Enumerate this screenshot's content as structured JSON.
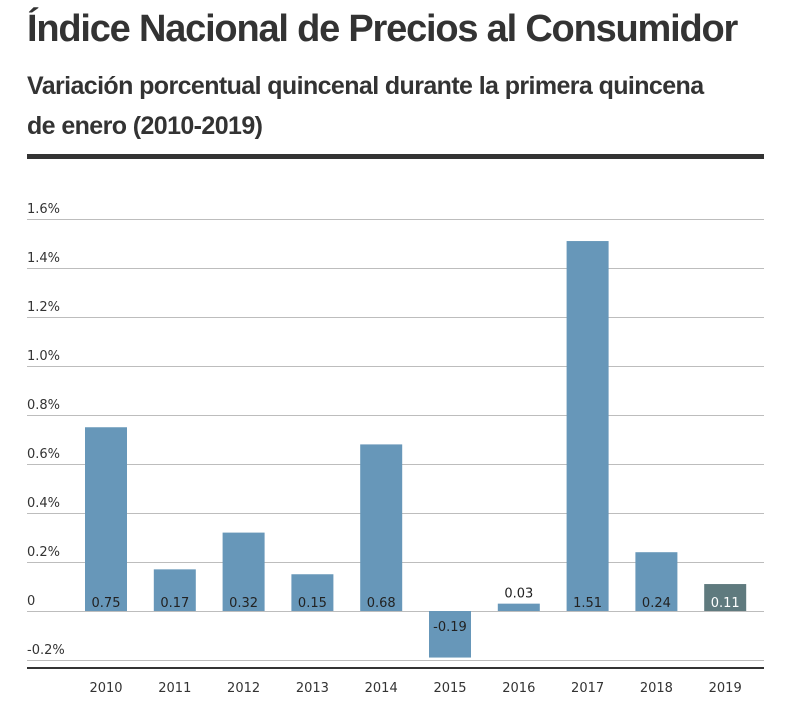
{
  "title": "Índice Nacional de Precios al Consumidor",
  "subtitle": "Variación porcentual quincenal durante la primera quincena de enero (2010-2019)",
  "colors": {
    "bar": "#6797b9",
    "highlight_bar": "#5f7a7e",
    "grid": "#bdbdbd",
    "text": "#333333",
    "rule": "#333333"
  },
  "chart_data": {
    "type": "bar",
    "categories": [
      "2010",
      "2011",
      "2012",
      "2013",
      "2014",
      "2015",
      "2016",
      "2017",
      "2018",
      "2019"
    ],
    "values": [
      0.75,
      0.17,
      0.32,
      0.15,
      0.68,
      -0.19,
      0.03,
      1.51,
      0.24,
      0.11
    ],
    "data_labels": [
      "0.75",
      "0.17",
      "0.32",
      "0.15",
      "0.68",
      "-0.19",
      "0.03",
      "1.51",
      "0.24",
      "0.11"
    ],
    "highlight_index": 9,
    "ylim": [
      -0.2,
      1.6
    ],
    "yticks": [
      -0.2,
      0,
      0.2,
      0.4,
      0.6,
      0.8,
      1.0,
      1.2,
      1.4,
      1.6
    ],
    "ytick_labels": [
      "-0.2%",
      "0",
      "0.2%",
      "0.4%",
      "0.6%",
      "0.8%",
      "1.0%",
      "1.2%",
      "1.4%",
      "1.6%"
    ],
    "title": "",
    "xlabel": "",
    "ylabel": "",
    "grid": true
  }
}
